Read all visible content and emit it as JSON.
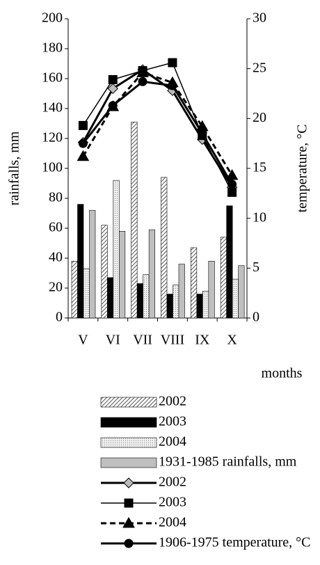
{
  "chart_data": {
    "type": "bar-line",
    "categories": [
      "V",
      "VI",
      "VII",
      "VIII",
      "IX",
      "X"
    ],
    "ylabel": "rainfalls, mm",
    "y2label": "temperature, °C",
    "xlabel": "months",
    "ylim": [
      0,
      200
    ],
    "yticks": [
      0,
      20,
      40,
      60,
      80,
      100,
      120,
      140,
      160,
      180,
      200
    ],
    "y2lim": [
      0,
      30
    ],
    "y2ticks": [
      0,
      5,
      10,
      15,
      20,
      25,
      30
    ],
    "series": [
      {
        "name": "2002",
        "type": "bar",
        "color": "#555555",
        "pattern": "hatch",
        "values": [
          38,
          62,
          131,
          94,
          47,
          54
        ]
      },
      {
        "name": "2003",
        "type": "bar",
        "color": "#000000",
        "pattern": "solid",
        "values": [
          76,
          27,
          23,
          16,
          16,
          75
        ]
      },
      {
        "name": "2004",
        "type": "bar",
        "color": "#999999",
        "pattern": "dots",
        "values": [
          33,
          92,
          29,
          22,
          18,
          26
        ]
      },
      {
        "name": "1931-1985 rainfalls, mm",
        "type": "bar",
        "color": "#bfbfbf",
        "pattern": "solid",
        "values": [
          72,
          58,
          59,
          36,
          38,
          35
        ]
      },
      {
        "name": "2002",
        "type": "line",
        "axis": "y2",
        "color": "#000000",
        "marker": "diamond",
        "values": [
          17.6,
          23.0,
          24.9,
          22.8,
          17.9,
          13.1
        ]
      },
      {
        "name": "2003",
        "type": "line",
        "axis": "y2",
        "color": "#000000",
        "marker": "square",
        "values": [
          19.3,
          23.9,
          24.8,
          25.6,
          18.3,
          12.6
        ]
      },
      {
        "name": "2004",
        "type": "line",
        "axis": "y2",
        "color": "#000000",
        "marker": "triangle",
        "dashed": true,
        "values": [
          16.2,
          21.2,
          24.6,
          23.6,
          19.2,
          14.3
        ]
      },
      {
        "name": "1906-1975 temperature, °C",
        "type": "line",
        "axis": "y2",
        "color": "#000000",
        "marker": "circle",
        "values": [
          17.5,
          21.3,
          23.7,
          23.3,
          18.5,
          13.4
        ]
      }
    ]
  }
}
